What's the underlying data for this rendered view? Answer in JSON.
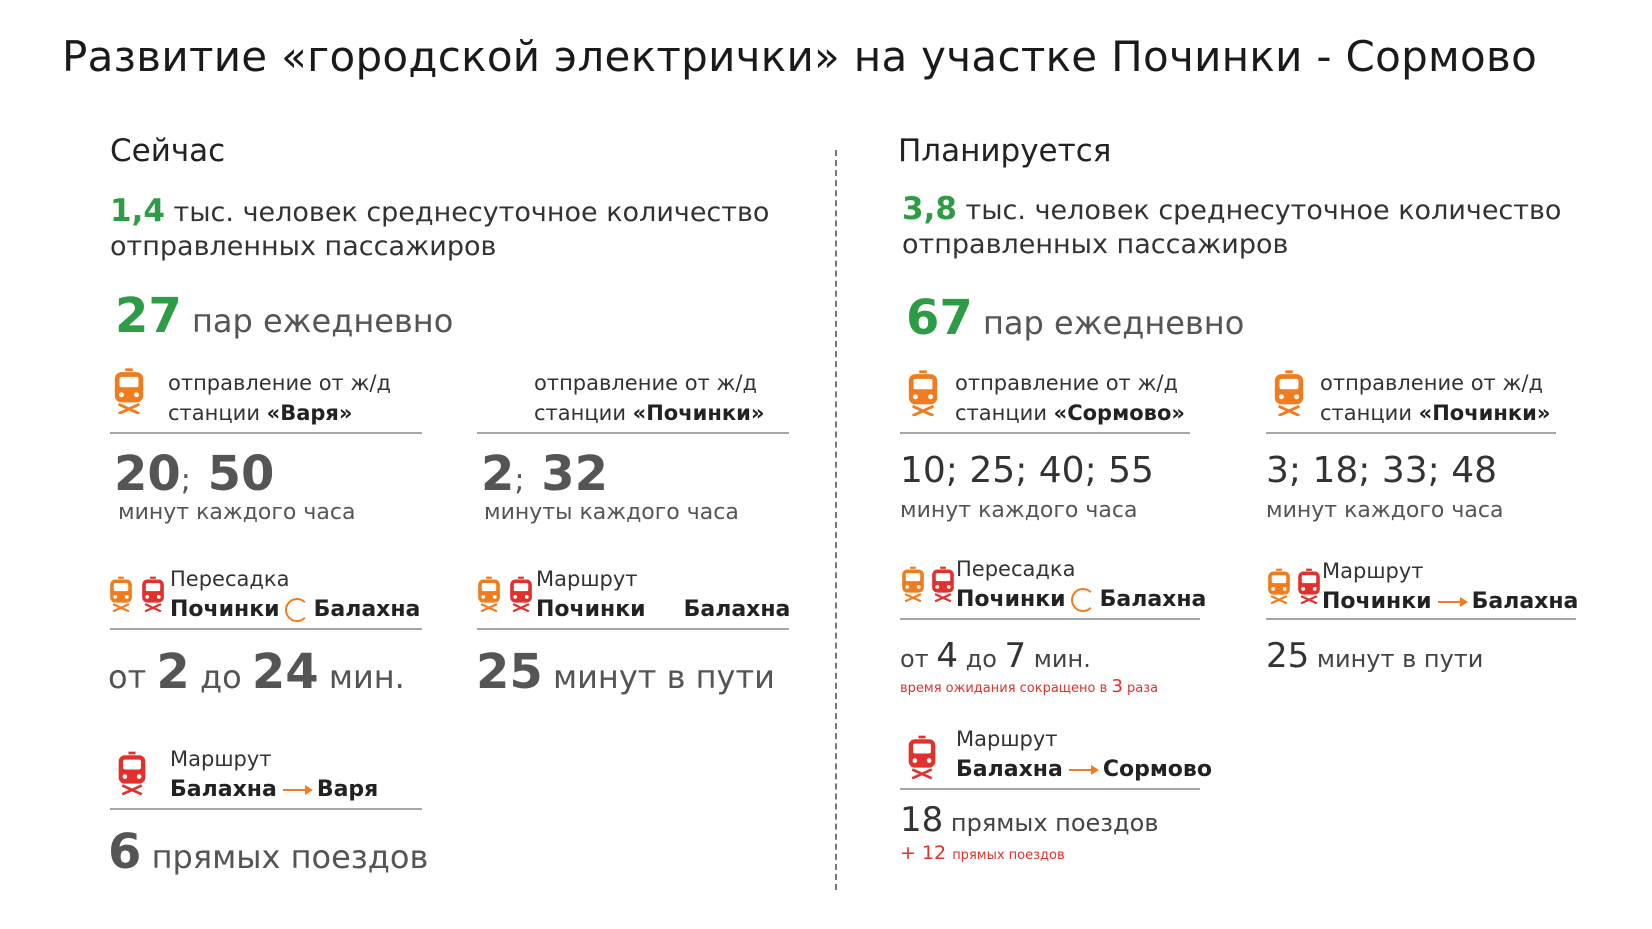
{
  "title": "Развитие «городской электрички» на участке Починки - Сормово",
  "now": {
    "heading": "Сейчас",
    "stat_number": "1,4",
    "stat_text_1": "тыс. человек среднесуточное количество",
    "stat_text_2": "отправленных пассажиров",
    "pairs_number": "27",
    "pairs_text": "пар ежедневно",
    "dep1": {
      "line1": "отправление от ж/д",
      "prefix": "станции",
      "station": "«Варя»",
      "t1": "20",
      "sep": ";",
      "t2": "50",
      "sub": "минут каждого часа"
    },
    "dep2": {
      "line1": "отправление от ж/д",
      "prefix": "станции",
      "station": "«Починки»",
      "t1": "2",
      "sep": ";",
      "t2": "32",
      "sub": "минуты каждого часа"
    },
    "transfer": {
      "label": "Пересадка",
      "from": "Починки",
      "to": "Балахна",
      "pre": "от",
      "n1": "2",
      "mid": "до",
      "n2": "24",
      "unit": "мин."
    },
    "route1": {
      "label": "Маршрут",
      "from": "Починки",
      "to": "Балахна",
      "n": "25",
      "text": "минут в пути"
    },
    "route2": {
      "label": "Маршрут",
      "from": "Балахна",
      "to": "Варя",
      "n": "6",
      "text": "прямых поездов"
    }
  },
  "plan": {
    "heading": "Планируется",
    "stat_number": "3,8",
    "stat_text_1": "тыс. человек среднесуточное количество",
    "stat_text_2": "отправленных пассажиров",
    "pairs_number": "67",
    "pairs_text": "пар ежедневно",
    "dep1": {
      "line1": "отправление от ж/д",
      "prefix": "станции",
      "station": "«Сормово»",
      "times": "10; 25; 40; 55",
      "sub": "минут каждого часа"
    },
    "dep2": {
      "line1": "отправление от ж/д",
      "prefix": "станции",
      "station": "«Починки»",
      "times": "3; 18; 33; 48",
      "sub": "минут каждого часа"
    },
    "transfer": {
      "label": "Пересадка",
      "from": "Починки",
      "to": "Балахна",
      "pre": "от",
      "n1": "4",
      "mid": "до",
      "n2": "7",
      "unit": "мин.",
      "note_pre": "время ожидания сокращено в",
      "note_n": "3",
      "note_post": "раза"
    },
    "route1": {
      "label": "Маршрут",
      "from": "Починки",
      "to": "Балахна",
      "n": "25",
      "text": "минут в пути"
    },
    "route2": {
      "label": "Маршрут",
      "from": "Балахна",
      "to": "Сормово",
      "n": "18",
      "text": "прямых поездов",
      "plus": "+ 12",
      "plus_text": "прямых поездов"
    }
  },
  "colors": {
    "green": "#2e9b45",
    "orange": "#f07c1e",
    "red": "#e0312d"
  },
  "icons": [
    "train-icon",
    "two-trains-icon",
    "arrow-right-icon",
    "transfer-cycle-icon"
  ]
}
